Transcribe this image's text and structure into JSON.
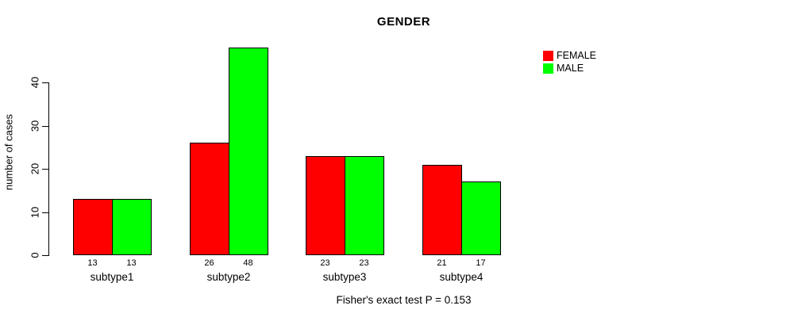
{
  "chart_data": {
    "type": "bar",
    "title": "GENDER",
    "xlabel": "",
    "ylabel": "number of cases",
    "categories": [
      "subtype1",
      "subtype2",
      "subtype3",
      "subtype4"
    ],
    "series": [
      {
        "name": "FEMALE",
        "color": "#ff0000",
        "values": [
          13,
          26,
          23,
          21
        ]
      },
      {
        "name": "MALE",
        "color": "#00ff00",
        "values": [
          13,
          48,
          23,
          17
        ]
      }
    ],
    "yticks": [
      0,
      10,
      20,
      30,
      40
    ],
    "ylim": [
      0,
      48
    ],
    "grid": false,
    "bar_value_labels": true,
    "legend_position": "top-right",
    "annotation": "Fisher's exact test P = 0.153"
  }
}
